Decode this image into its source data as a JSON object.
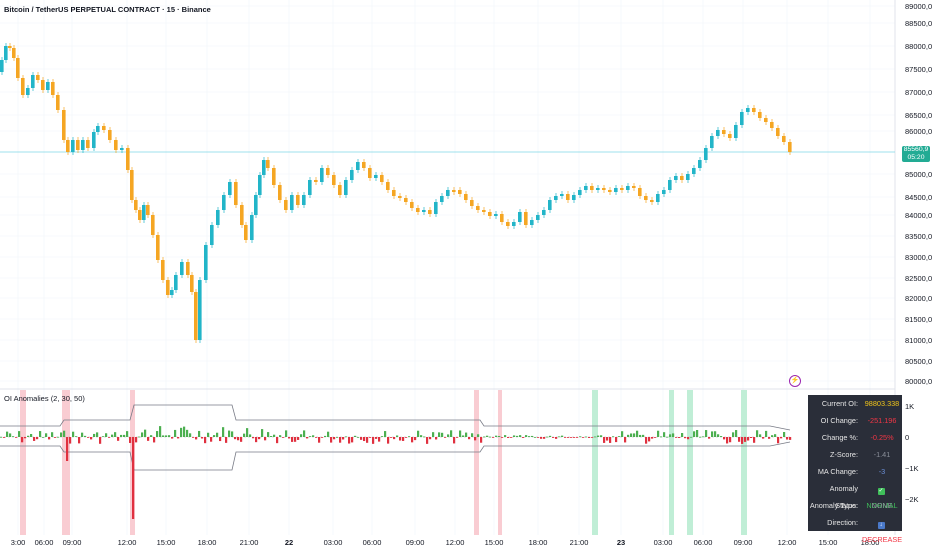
{
  "header": {
    "title": "Bitcoin / TetherUS PERPETUAL CONTRACT · 15 · Binance"
  },
  "indicator": {
    "title": "OI Anomalies (2, 30, 50)"
  },
  "price_axis": {
    "labels": [
      "89000,0",
      "88500,0",
      "88000,0",
      "87500,0",
      "87000,0",
      "86500,0",
      "86000,0",
      "85000,0",
      "84500,0",
      "84000,0",
      "83500,0",
      "83000,0",
      "82500,0",
      "82000,0",
      "81500,0",
      "81000,0",
      "80500,0",
      "80000,0"
    ],
    "current_price": "85560,9",
    "countdown": "05:20"
  },
  "indicator_axis": {
    "labels": [
      "1K",
      "0",
      "−1K",
      "−2K"
    ]
  },
  "time_axis": {
    "labels": [
      "3:00",
      "06:00",
      "09:00",
      "12:00",
      "15:00",
      "18:00",
      "21:00",
      "22",
      "03:00",
      "06:00",
      "09:00",
      "12:00",
      "15:00",
      "18:00",
      "21:00",
      "23",
      "03:00",
      "06:00",
      "09:00",
      "12:00",
      "15:00",
      "18:00"
    ],
    "bold": [
      "22",
      "23"
    ]
  },
  "stats_panel": {
    "rows": [
      {
        "label": "Current OI:",
        "value": "98803.338"
      },
      {
        "label": "OI Change:",
        "value": "-251.196"
      },
      {
        "label": "Change %:",
        "value": "-0.25%"
      },
      {
        "label": "Z-Score:",
        "value": "-1.41"
      },
      {
        "label": "MA Change:",
        "value": "-3"
      },
      {
        "label": "Anomaly Status:",
        "value": "NORMAL",
        "icon": "check-icon"
      },
      {
        "label": "Anomaly Type:",
        "value": "NONE"
      },
      {
        "label": "Direction:",
        "value": "DECREASE",
        "icon": "down-arrow-icon"
      }
    ]
  },
  "colors": {
    "up": "#26a69a",
    "up_body": "#22b5c8",
    "down": "#f5a623",
    "hist_up": "#4caf50",
    "hist_down": "#e0303f",
    "anomaly_red": "#f8c7cd",
    "anomaly_green": "#b9ecd2",
    "panel_bg": "#2a2e39",
    "price_line": "#7fd8e6"
  },
  "icons": {
    "alert": "alert-clock-icon"
  }
}
